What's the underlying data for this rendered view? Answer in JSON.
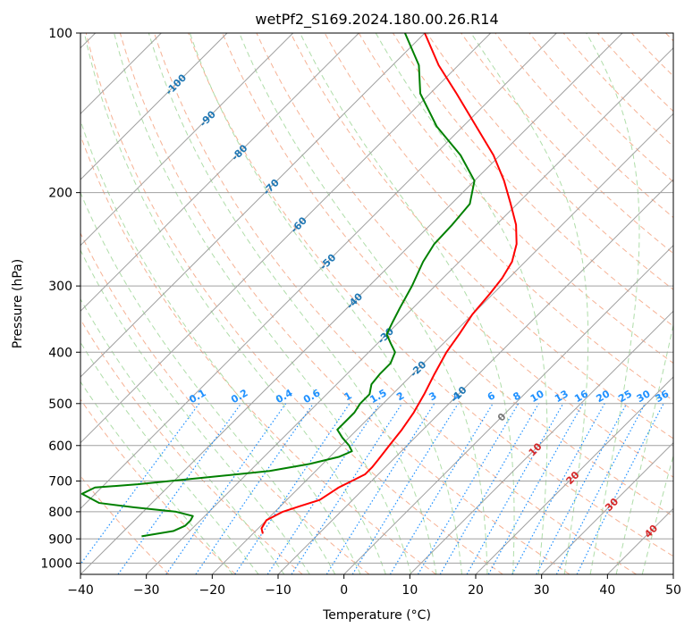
{
  "chart_data": {
    "type": "line",
    "subtype": "skew-T log-P diagram",
    "title": "wetPf2_S169.2024.180.00.26.R14",
    "xlabel": "Temperature (°C)",
    "ylabel": "Pressure (hPa)",
    "xlim": [
      -40,
      50
    ],
    "ylim": [
      1050,
      100
    ],
    "y_scale": "log",
    "x_ticks": [
      "−40",
      "−30",
      "−20",
      "−10",
      "0",
      "10",
      "20",
      "30",
      "40",
      "50"
    ],
    "y_ticks": [
      "100",
      "200",
      "300",
      "400",
      "500",
      "600",
      "700",
      "800",
      "900",
      "1000"
    ],
    "grid": true,
    "colors": {
      "temperature": "#ff0000",
      "dewpoint": "#008000",
      "isotherm": "#a0a0a0",
      "dry_adiabat": "#f4a582",
      "moist_adiabat": "#a6d9a0",
      "mixing_ratio": "#1e90ff",
      "isotherm_label_neg": "#1f77b4",
      "isotherm_label_pos": "#d62728"
    },
    "isotherm_labels_negative": [
      "-100",
      "-90",
      "-80",
      "-70",
      "-60",
      "-50",
      "-40",
      "-30",
      "-20",
      "-10"
    ],
    "isotherm_labels_positive": [
      "0",
      "10",
      "20",
      "30",
      "40"
    ],
    "mixing_ratio_labels": [
      "0.1",
      "0.2",
      "0.4",
      "0.6",
      "1",
      "1.5",
      "2",
      "3",
      "4",
      "6",
      "8",
      "10",
      "13",
      "16",
      "20",
      "25",
      "30",
      "36"
    ],
    "series": [
      {
        "key": "temperature",
        "pressure": [
          880,
          860,
          830,
          800,
          780,
          760,
          740,
          720,
          700,
          680,
          660,
          640,
          600,
          560,
          520,
          480,
          440,
          400,
          370,
          340,
          310,
          290,
          270,
          250,
          230,
          210,
          190,
          170,
          150,
          130,
          115,
          100
        ],
        "values": [
          -18.5,
          -19.5,
          -20.0,
          -18.8,
          -17.0,
          -15.0,
          -14.5,
          -14.0,
          -13.0,
          -12.0,
          -12.0,
          -12.2,
          -12.7,
          -13.2,
          -14.0,
          -15.2,
          -16.7,
          -18.2,
          -19.0,
          -20.0,
          -20.5,
          -21.0,
          -22.0,
          -24.0,
          -27.0,
          -31.0,
          -35.5,
          -41.0,
          -48.0,
          -56.0,
          -63.0,
          -70.0
        ]
      },
      {
        "key": "dewpoint",
        "pressure": [
          890,
          870,
          850,
          830,
          815,
          800,
          785,
          770,
          740,
          720,
          710,
          690,
          670,
          650,
          630,
          615,
          600,
          580,
          560,
          540,
          520,
          500,
          480,
          460,
          440,
          420,
          400,
          385,
          370,
          350,
          330,
          300,
          270,
          250,
          230,
          210,
          190,
          170,
          150,
          130,
          115,
          100
        ],
        "values": [
          -36.5,
          -32.5,
          -31.5,
          -31.5,
          -31.8,
          -35.0,
          -42.0,
          -48.0,
          -52.0,
          -51.0,
          -45.0,
          -36.0,
          -27.0,
          -22.0,
          -18.6,
          -17.5,
          -18.8,
          -21.0,
          -23.0,
          -23.0,
          -23.0,
          -23.5,
          -23.5,
          -24.7,
          -25.0,
          -25.0,
          -26.0,
          -28.0,
          -30.0,
          -31.0,
          -32.0,
          -33.5,
          -35.5,
          -36.5,
          -36.7,
          -37.2,
          -40.0,
          -46.0,
          -54.0,
          -61.5,
          -66.0,
          -73.0
        ]
      }
    ]
  }
}
